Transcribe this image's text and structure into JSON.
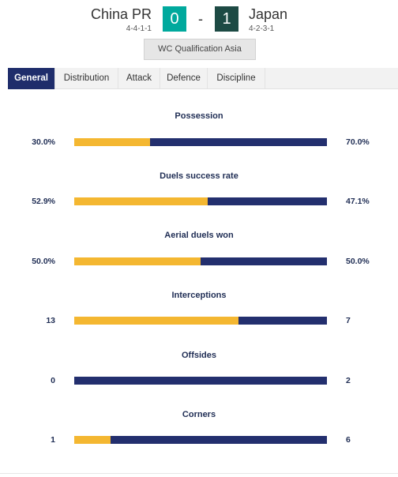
{
  "match": {
    "home_team": "China PR",
    "home_formation": "4-4-1-1",
    "home_score": "0",
    "separator": "-",
    "away_score": "1",
    "away_team": "Japan",
    "away_formation": "4-2-3-1",
    "competition": "WC Qualification Asia"
  },
  "tabs": [
    {
      "label": "General",
      "active": true
    },
    {
      "label": "Distribution",
      "active": false
    },
    {
      "label": "Attack",
      "active": false
    },
    {
      "label": "Defence",
      "active": false
    },
    {
      "label": "Discipline",
      "active": false
    }
  ],
  "stats": [
    {
      "title": "Possession",
      "home": "30.0%",
      "away": "70.0%",
      "home_fraction": 0.3
    },
    {
      "title": "Duels success rate",
      "home": "52.9%",
      "away": "47.1%",
      "home_fraction": 0.529
    },
    {
      "title": "Aerial duels won",
      "home": "50.0%",
      "away": "50.0%",
      "home_fraction": 0.5
    },
    {
      "title": "Interceptions",
      "home": "13",
      "away": "7",
      "home_fraction": 0.65
    },
    {
      "title": "Offsides",
      "home": "0",
      "away": "2",
      "home_fraction": 0.0
    },
    {
      "title": "Corners",
      "home": "1",
      "away": "6",
      "home_fraction": 0.1429
    }
  ],
  "colors": {
    "home_bar": "#f4b731",
    "away_bar": "#232f6e",
    "home_score_bg": "#00a99d",
    "away_score_bg": "#1d4a44",
    "active_tab": "#1f2d6b"
  }
}
